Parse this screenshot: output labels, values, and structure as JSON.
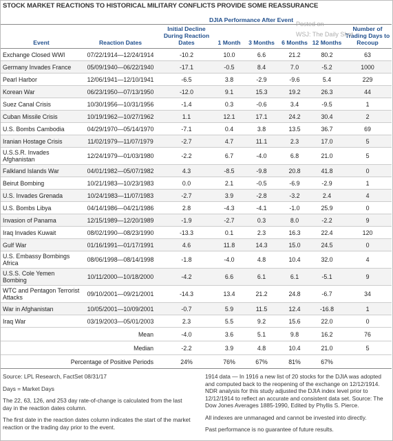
{
  "header": {
    "title": "STOCK MARKET REACTIONS TO HISTORICAL MILITARY CONFLICTS PROVIDE SOME REASSURANCE"
  },
  "watermark": [
    "Posted on",
    "WSJ: The Daily Shot"
  ],
  "table": {
    "group_header": "DJIA Performance After Event",
    "columns": [
      "Event",
      "Reaction Dates",
      "Initial Decline During Reaction Dates",
      "1 Month",
      "3 Months",
      "6 Months",
      "12 Months",
      "Number of Trading Days to Recoup"
    ],
    "rows": [
      [
        "Exchange Closed WWI",
        "07/22/1914—12/24/1914",
        "-10.2",
        "10.0",
        "6.6",
        "21.2",
        "80.2",
        "63"
      ],
      [
        "Germany Invades France",
        "05/09/1940—06/22/1940",
        "-17.1",
        "-0.5",
        "8.4",
        "7.0",
        "-5.2",
        "1000"
      ],
      [
        "Pearl Harbor",
        "12/06/1941—12/10/1941",
        "-6.5",
        "3.8",
        "-2.9",
        "-9.6",
        "5.4",
        "229"
      ],
      [
        "Korean War",
        "06/23/1950—07/13/1950",
        "-12.0",
        "9.1",
        "15.3",
        "19.2",
        "26.3",
        "44"
      ],
      [
        "Suez Canal Crisis",
        "10/30/1956—10/31/1956",
        "-1.4",
        "0.3",
        "-0.6",
        "3.4",
        "-9.5",
        "1"
      ],
      [
        "Cuban Missile Crisis",
        "10/19/1962—10/27/1962",
        "1.1",
        "12.1",
        "17.1",
        "24.2",
        "30.4",
        "2"
      ],
      [
        "U.S. Bombs Cambodia",
        "04/29/1970—05/14/1970",
        "-7.1",
        "0.4",
        "3.8",
        "13.5",
        "36.7",
        "69"
      ],
      [
        "Iranian Hostage Crisis",
        "11/02/1979—11/07/1979",
        "-2.7",
        "4.7",
        "11.1",
        "2.3",
        "17.0",
        "5"
      ],
      [
        "U.S.S.R. Invades Afghanistan",
        "12/24/1979—01/03/1980",
        "-2.2",
        "6.7",
        "-4.0",
        "6.8",
        "21.0",
        "5"
      ],
      [
        "Falkland Islands War",
        "04/01/1982—05/07/1982",
        "4.3",
        "-8.5",
        "-9.8",
        "20.8",
        "41.8",
        "0"
      ],
      [
        "Beirut Bombing",
        "10/21/1983—10/23/1983",
        "0.0",
        "2.1",
        "-0.5",
        "-6.9",
        "-2.9",
        "1"
      ],
      [
        "U.S. Invades Grenada",
        "10/24/1983—11/07/1983",
        "-2.7",
        "3.9",
        "-2.8",
        "-3.2",
        "2.4",
        "4"
      ],
      [
        "U.S. Bombs Libya",
        "04/14/1986—04/21/1986",
        "2.8",
        "-4.3",
        "-4.1",
        "-1.0",
        "25.9",
        "0"
      ],
      [
        "Invasion of Panama",
        "12/15/1989—12/20/1989",
        "-1.9",
        "-2.7",
        "0.3",
        "8.0",
        "-2.2",
        "9"
      ],
      [
        "Iraq Invades Kuwait",
        "08/02/1990—08/23/1990",
        "-13.3",
        "0.1",
        "2.3",
        "16.3",
        "22.4",
        "120"
      ],
      [
        "Gulf War",
        "01/16/1991—01/17/1991",
        "4.6",
        "11.8",
        "14.3",
        "15.0",
        "24.5",
        "0"
      ],
      [
        "U.S. Embassy Bombings Africa",
        "08/06/1998—08/14/1998",
        "-1.8",
        "-4.0",
        "4.8",
        "10.4",
        "32.0",
        "4"
      ],
      [
        "U.S.S. Cole Yemen Bombing",
        "10/11/2000—10/18/2000",
        "-4.2",
        "6.6",
        "6.1",
        "6.1",
        "-5.1",
        "9"
      ],
      [
        "WTC and Pentagon Terrorist Attacks",
        "09/10/2001—09/21/2001",
        "-14.3",
        "13.4",
        "21.2",
        "24.8",
        "-6.7",
        "34"
      ],
      [
        "War in Afghanistan",
        "10/05/2001—10/09/2001",
        "-0.7",
        "5.9",
        "11.5",
        "12.4",
        "-16.8",
        "1"
      ],
      [
        "Iraq War",
        "03/19/2003—05/01/2003",
        "2.3",
        "5.5",
        "9.2",
        "15.6",
        "22.0",
        "0"
      ]
    ],
    "summary": [
      [
        "Mean",
        "-4.0",
        "3.6",
        "5.1",
        "9.8",
        "16.2",
        "76"
      ],
      [
        "Median",
        "-2.2",
        "3.9",
        "4.8",
        "10.4",
        "21.0",
        "5"
      ],
      [
        "Percentage of Positive Periods",
        "24%",
        "76%",
        "67%",
        "81%",
        "67%"
      ]
    ]
  },
  "notes": {
    "left": [
      "Source: LPL Research, FactSet 08/31/17",
      "Days = Market Days",
      "The 22, 63, 126, and 253 day rate-of-change is calculated from the last day in the reaction dates column.",
      "The first date in the reaction dates column indicates the start of the market reaction or the trading day prior to the event."
    ],
    "right": [
      "1914 data — In 1916 a new list of 20 stocks for the DJIA was adopted and computed back to the reopening of the exchange on 12/12/1914. NDR analysis for this study adjusted the DJIA index level prior to 12/12/1914 to reflect an accurate and consistent data set. Source: The Dow Jones Averages 1885-1990, Edited by Phyllis S. Pierce.",
      "All indexes are unmanaged and cannot be invested into directly.",
      "Past performance is no guarantee of future results."
    ]
  }
}
